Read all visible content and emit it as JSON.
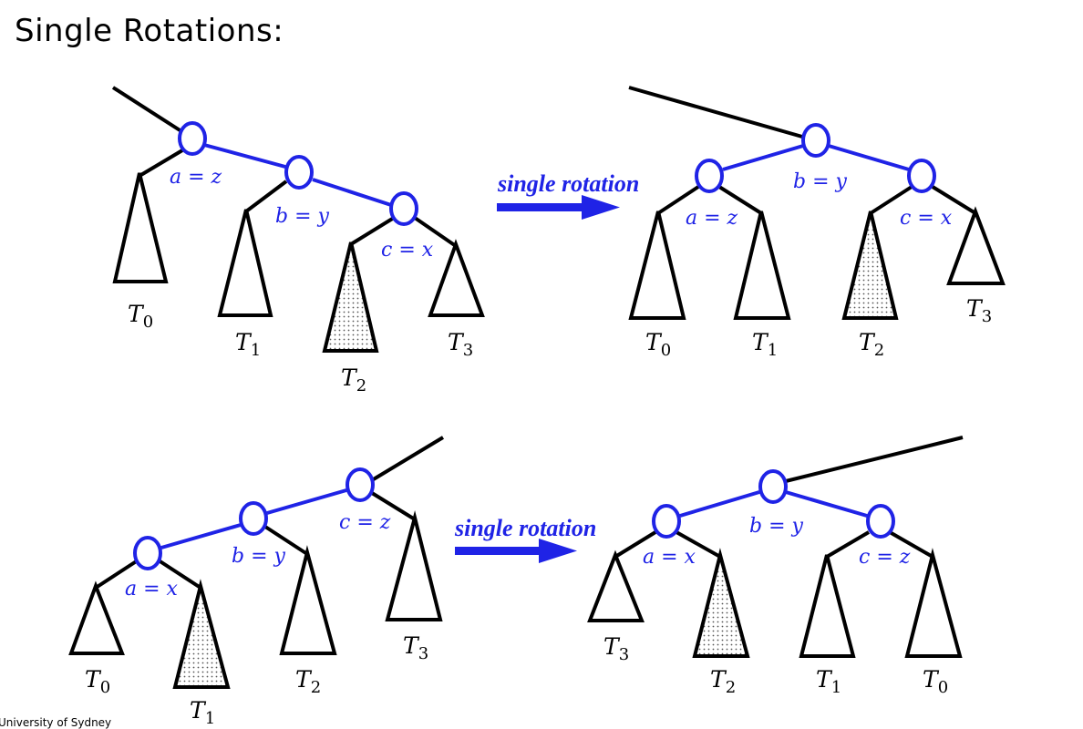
{
  "title": "Single Rotations:",
  "footer": "University of Sydney",
  "colors": {
    "accent": "#1f23e6",
    "black": "#000000"
  },
  "diagrams": {
    "top_left": {
      "nodes": {
        "a": "a = z",
        "b": "b = y",
        "c": "c = x"
      },
      "subtrees": {
        "t0": "0",
        "t1": "1",
        "t2": "2",
        "t3": "3"
      }
    },
    "top_right": {
      "nodes": {
        "a": "a = z",
        "b": "b = y",
        "c": "c = x"
      },
      "subtrees": {
        "t0": "0",
        "t1": "1",
        "t2": "2",
        "t3": "3"
      }
    },
    "bottom_left": {
      "nodes": {
        "a": "a = x",
        "b": "b = y",
        "c": "c = z"
      },
      "subtrees": {
        "t0": "0",
        "t1": "1",
        "t2": "2",
        "t3": "3"
      }
    },
    "bottom_right": {
      "nodes": {
        "a": "a = x",
        "b": "b = y",
        "c": "c = z"
      },
      "subtrees": {
        "t0": "0",
        "t1": "1",
        "t2": "2",
        "t3": "3"
      }
    }
  },
  "arrows": {
    "top": "single rotation",
    "bottom": "single rotation"
  },
  "subtree_letter": "T"
}
